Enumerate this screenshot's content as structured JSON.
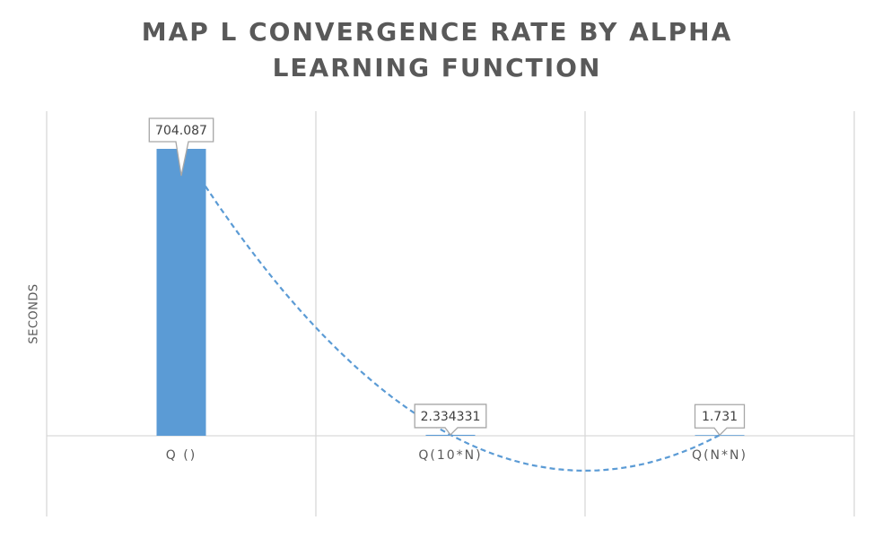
{
  "chart_data": {
    "type": "bar",
    "title_lines": [
      "MAP L CONVERGENCE RATE BY ALPHA",
      "LEARNING FUNCTION"
    ],
    "xlabel": "",
    "ylabel": "SECONDS",
    "categories": [
      "Q ()",
      "Q(10*N)",
      "Q(N*N)"
    ],
    "values": [
      704.087,
      2.334331,
      1.731
    ],
    "data_labels": [
      "704.087",
      "2.334331",
      "1.731"
    ],
    "trendline": "polynomial, dashed",
    "ylim": [
      -90,
      704.087
    ],
    "grid": "vertical",
    "legend": "none",
    "colors": {
      "bar": "#5b9bd5",
      "trend": "#5b9bd5",
      "grid": "#d9d9d9",
      "text": "#595959",
      "label_border": "#a6a6a6"
    }
  }
}
